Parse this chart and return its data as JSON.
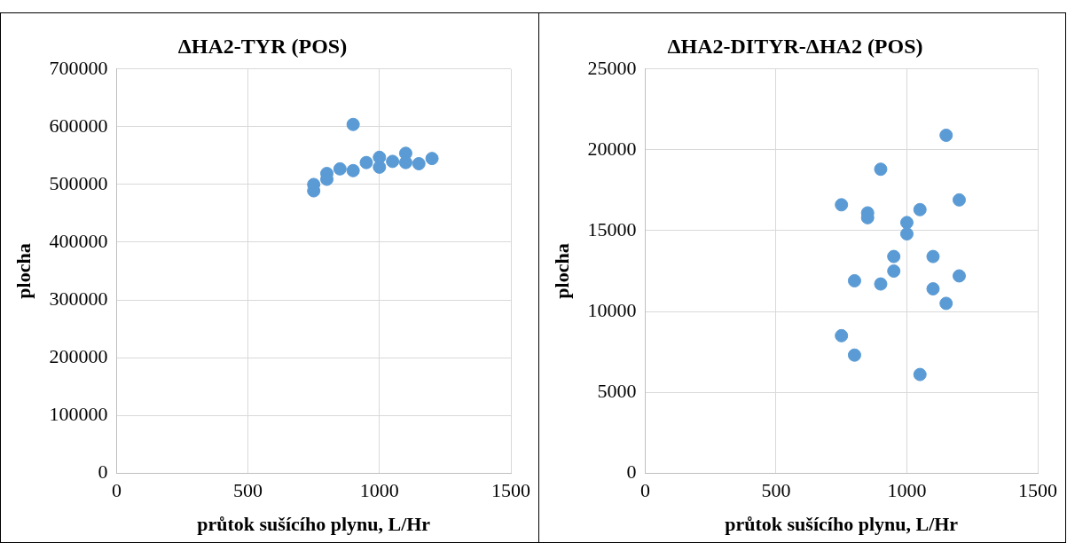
{
  "chart_data": [
    {
      "type": "scatter",
      "title": "ΔHA2-TYR (POS)",
      "xlabel": "průtok sušícího plynu, L/Hr",
      "ylabel": "plocha",
      "color": "#5b9bd5",
      "marker": "circle",
      "grid": true,
      "x": [
        900,
        750,
        750,
        800,
        800,
        850,
        900,
        950,
        1000,
        1000,
        1050,
        1100,
        1100,
        1150,
        1200
      ],
      "values": [
        604000,
        500000,
        489000,
        519000,
        509000,
        527000,
        524000,
        538000,
        547000,
        530000,
        540000,
        554000,
        538000,
        536000,
        545000
      ],
      "xlim": [
        0,
        1500
      ],
      "xticks": [
        0,
        500,
        1000,
        1500
      ],
      "ylim": [
        0,
        700000
      ],
      "yticks": [
        0,
        100000,
        200000,
        300000,
        400000,
        500000,
        600000,
        700000
      ]
    },
    {
      "type": "scatter",
      "title": "ΔHA2-DITYR-ΔHA2 (POS)",
      "xlabel": "průtok sušícího plynu, L/Hr",
      "ylabel": "plocha",
      "color": "#5b9bd5",
      "marker": "circle",
      "grid": true,
      "x": [
        1150,
        900,
        750,
        850,
        850,
        1050,
        1200,
        1000,
        1000,
        950,
        1100,
        950,
        800,
        900,
        1200,
        1100,
        1150,
        750,
        800,
        1050
      ],
      "values": [
        20900,
        18800,
        16600,
        16100,
        15800,
        16300,
        16900,
        15500,
        14800,
        13400,
        13400,
        12500,
        11900,
        11700,
        12200,
        11400,
        10500,
        8500,
        7300,
        6100
      ],
      "xlim": [
        0,
        1500
      ],
      "xticks": [
        0,
        500,
        1000,
        1500
      ],
      "ylim": [
        0,
        25000
      ],
      "yticks": [
        0,
        5000,
        10000,
        15000,
        20000,
        25000
      ]
    }
  ]
}
